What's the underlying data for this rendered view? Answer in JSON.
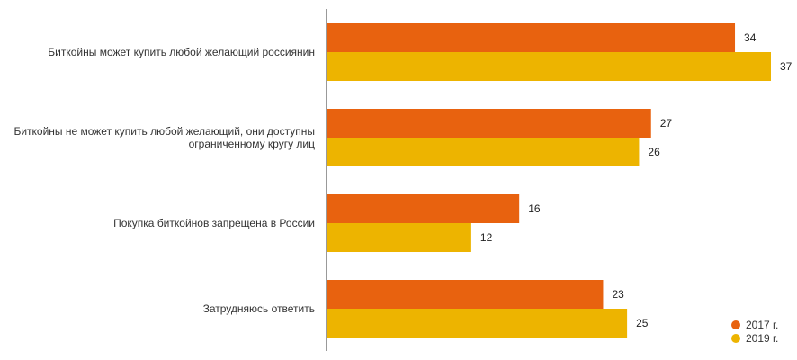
{
  "chart_data": {
    "type": "bar",
    "orientation": "horizontal",
    "categories": [
      [
        "Биткойны может купить любой желающий россиянин"
      ],
      [
        "Биткойны не может купить любой желающий, они доступны",
        "ограниченному кругу лиц"
      ],
      [
        "Покупка биткойнов запрещена в России"
      ],
      [
        "Затрудняюсь ответить"
      ]
    ],
    "series": [
      {
        "name": "2017 г.",
        "color": "#e8620f",
        "values": [
          34,
          27,
          16,
          23
        ]
      },
      {
        "name": "2019 г.",
        "color": "#edb400",
        "values": [
          37,
          26,
          12,
          25
        ]
      }
    ],
    "xlim": [
      0,
      37
    ],
    "grid": false,
    "legend_position": "bottom-right"
  }
}
